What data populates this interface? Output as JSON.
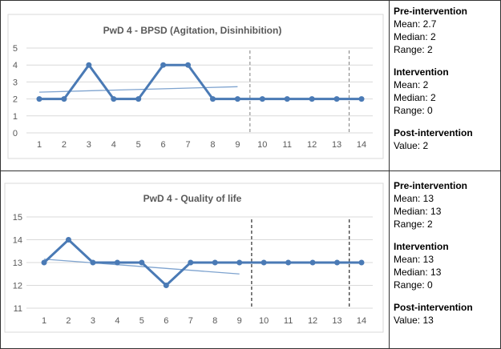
{
  "chart_data": [
    {
      "type": "line",
      "title": "PwD 4 - BPSD (Agitation, Disinhibition)",
      "x": [
        1,
        2,
        3,
        4,
        5,
        6,
        7,
        8,
        9,
        10,
        11,
        12,
        13,
        14
      ],
      "values": [
        2,
        2,
        4,
        2,
        2,
        4,
        4,
        2,
        2,
        2,
        2,
        2,
        2,
        2
      ],
      "ylim": [
        0,
        5
      ],
      "yticks": [
        0,
        1,
        2,
        3,
        4,
        5
      ],
      "trendline": {
        "x": [
          1,
          9
        ],
        "y": [
          2.4,
          2.72
        ]
      },
      "phase_lines": [
        9.5,
        13.5
      ],
      "phase_line_color": "#7f7f7f",
      "grid": true,
      "color": "#4a7ab5"
    },
    {
      "type": "line",
      "title": "PwD 4 - Quality of life",
      "x": [
        1,
        2,
        3,
        4,
        5,
        6,
        7,
        8,
        9,
        10,
        11,
        12,
        13,
        14
      ],
      "values": [
        13,
        14,
        13,
        13,
        13,
        12,
        13,
        13,
        13,
        13,
        13,
        13,
        13,
        13
      ],
      "ylim": [
        11,
        15
      ],
      "yticks": [
        11,
        12,
        13,
        14,
        15
      ],
      "trendline": {
        "x": [
          1,
          9
        ],
        "y": [
          13.15,
          12.5
        ]
      },
      "phase_lines": [
        9.5,
        13.5
      ],
      "phase_line_color": "#000000",
      "grid": true,
      "color": "#4a7ab5"
    }
  ],
  "stats": [
    {
      "pre": {
        "title": "Pre-intervention",
        "lines": [
          "Mean: 2.7",
          "Median: 2",
          "Range: 2"
        ]
      },
      "int": {
        "title": "Intervention",
        "lines": [
          "Mean: 2",
          "Median: 2",
          "Range: 0"
        ]
      },
      "post": {
        "title": "Post-intervention",
        "lines": [
          "Value: 2"
        ]
      }
    },
    {
      "pre": {
        "title": "Pre-intervention",
        "lines": [
          "Mean: 13",
          "Median: 13",
          "Range: 2"
        ]
      },
      "int": {
        "title": "Intervention",
        "lines": [
          "Mean: 13",
          "Median: 13",
          "Range: 0"
        ]
      },
      "post": {
        "title": "Post-intervention",
        "lines": [
          "Value: 13"
        ]
      }
    }
  ]
}
